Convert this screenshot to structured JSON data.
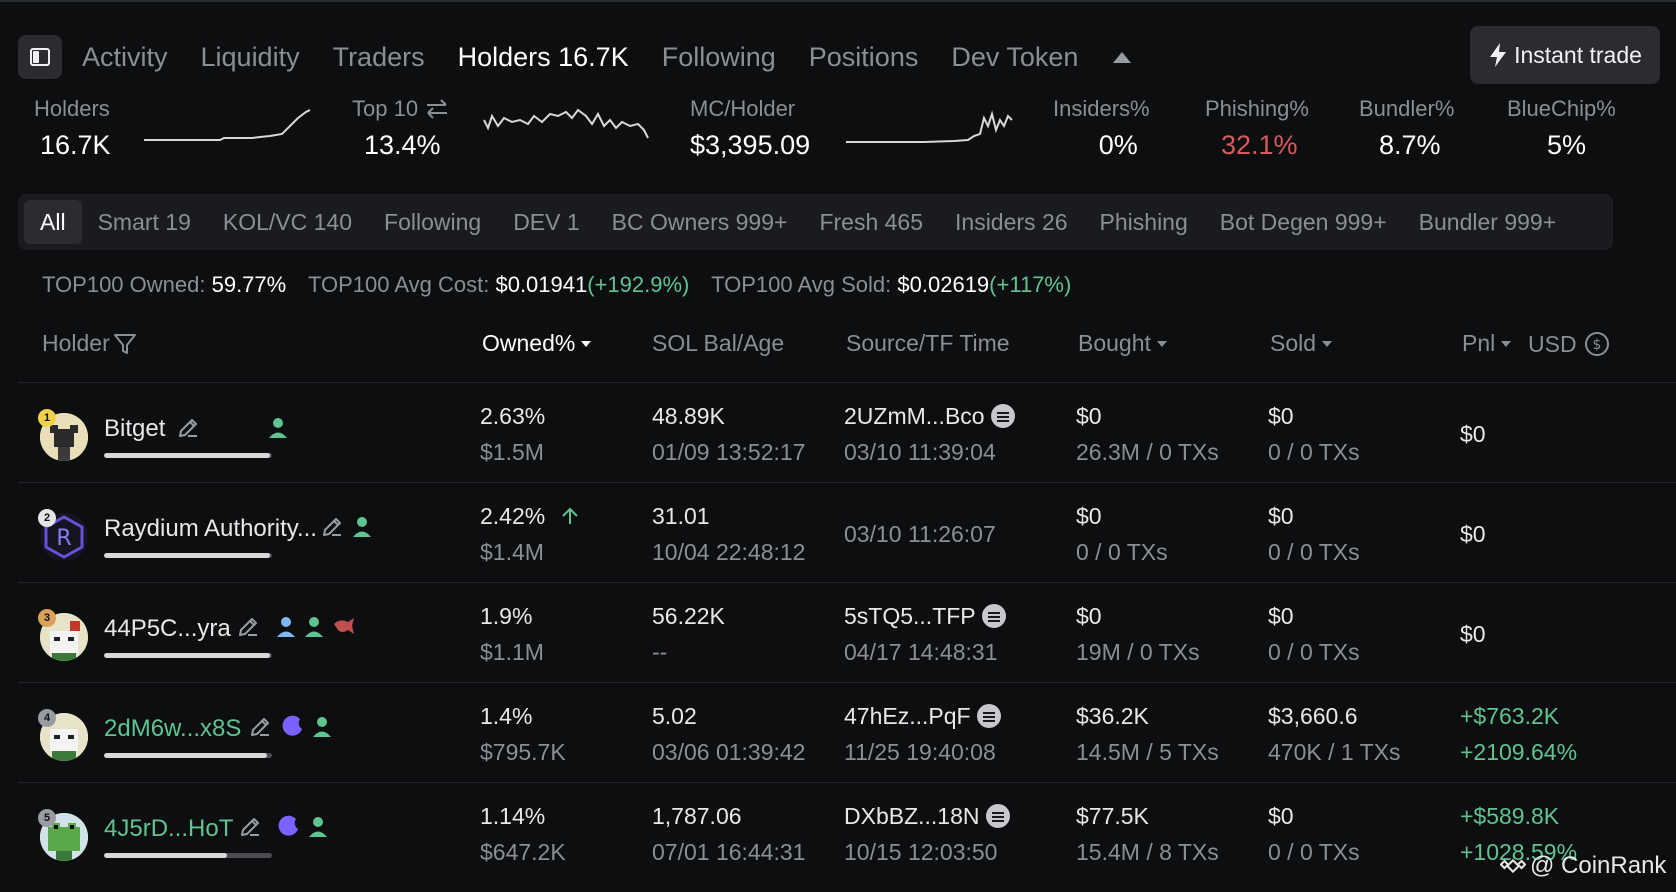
{
  "tabs": [
    "Activity",
    "Liquidity",
    "Traders",
    "Holders 16.7K",
    "Following",
    "Positions",
    "Dev Token"
  ],
  "instant_trade_label": "Instant trade",
  "stats": {
    "holders": {
      "label": "Holders",
      "value": "16.7K"
    },
    "top10": {
      "label": "Top 10",
      "value": "13.4%"
    },
    "mc_holder": {
      "label": "MC/Holder",
      "value": "$3,395.09"
    },
    "insiders": {
      "label": "Insiders%",
      "value": "0%"
    },
    "phishing": {
      "label": "Phishing%",
      "value": "32.1%"
    },
    "bundler": {
      "label": "Bundler%",
      "value": "8.7%"
    },
    "bluechip": {
      "label": "BlueChip%",
      "value": "5%"
    }
  },
  "filters": [
    "All",
    "Smart 19",
    "KOL/VC 140",
    "Following",
    "DEV 1",
    "BC Owners 999+",
    "Fresh 465",
    "Insiders 26",
    "Phishing",
    "Bot Degen 999+",
    "Bundler 999+"
  ],
  "summary": {
    "owned_label": "TOP100 Owned:",
    "owned_value": "59.77%",
    "avg_cost_label": "TOP100 Avg Cost:",
    "avg_cost_value": "$0.01941",
    "avg_cost_change": "(+192.9%)",
    "avg_sold_label": "TOP100 Avg Sold:",
    "avg_sold_value": "$0.02619",
    "avg_sold_change": "(+117%)"
  },
  "columns": {
    "holder": "Holder",
    "owned": "Owned%",
    "sol_bal": "SOL Bal/Age",
    "source": "Source/TF Time",
    "bought": "Bought",
    "sold": "Sold",
    "pnl": "Pnl",
    "usd": "USD"
  },
  "rows": [
    {
      "rank": "1",
      "name": "Bitget",
      "owned_pct": "2.63%",
      "owned_usd": "$1.5M",
      "sol_bal": "48.89K",
      "age": "01/09 13:52:17",
      "source": "2UZmM...Bco",
      "tf_time": "03/10 11:39:04",
      "bought_usd": "$0",
      "bought_tx": "26.3M / 0 TXs",
      "sold_usd": "$0",
      "sold_tx": "0 / 0 TXs",
      "pnl": "$0",
      "pnl_pct": "",
      "bar": 0.99
    },
    {
      "rank": "2",
      "name": "Raydium Authority...",
      "owned_pct": "2.42%",
      "owned_usd": "$1.4M",
      "sol_bal": "31.01",
      "age": "10/04 22:48:12",
      "source": "",
      "tf_time": "03/10 11:26:07",
      "bought_usd": "$0",
      "bought_tx": "0 / 0 TXs",
      "sold_usd": "$0",
      "sold_tx": "0 / 0 TXs",
      "pnl": "$0",
      "pnl_pct": "",
      "bar": 0.99
    },
    {
      "rank": "3",
      "name": "44P5C...yra",
      "owned_pct": "1.9%",
      "owned_usd": "$1.1M",
      "sol_bal": "56.22K",
      "age": "--",
      "source": "5sTQ5...TFP",
      "tf_time": "04/17 14:48:31",
      "bought_usd": "$0",
      "bought_tx": "19M / 0 TXs",
      "sold_usd": "$0",
      "sold_tx": "0 / 0 TXs",
      "pnl": "$0",
      "pnl_pct": "",
      "bar": 0.99
    },
    {
      "rank": "4",
      "name": "2dM6w...x8S",
      "owned_pct": "1.4%",
      "owned_usd": "$795.7K",
      "sol_bal": "5.02",
      "age": "03/06 01:39:42",
      "source": "47hEz...PqF",
      "tf_time": "11/25 19:40:08",
      "bought_usd": "$36.2K",
      "bought_tx": "14.5M / 5 TXs",
      "sold_usd": "$3,660.6",
      "sold_tx": "470K / 1 TXs",
      "pnl": "+$763.2K",
      "pnl_pct": "+2109.64%",
      "bar": 0.97
    },
    {
      "rank": "5",
      "name": "4J5rD...HoT",
      "owned_pct": "1.14%",
      "owned_usd": "$647.2K",
      "sol_bal": "1,787.06",
      "age": "07/01 16:44:31",
      "source": "DXbBZ...18N",
      "tf_time": "10/15 12:03:50",
      "bought_usd": "$77.5K",
      "bought_tx": "15.4M / 8 TXs",
      "sold_usd": "$0",
      "sold_tx": "0 / 0 TXs",
      "pnl": "+$589.8K",
      "pnl_pct": "+1028.59%",
      "bar": 0.73
    }
  ],
  "watermark": "@ CoinRank",
  "colors": {
    "accent_green": "#5fc490",
    "phishing_red": "#d85a5a",
    "background": "#0d0e10"
  }
}
